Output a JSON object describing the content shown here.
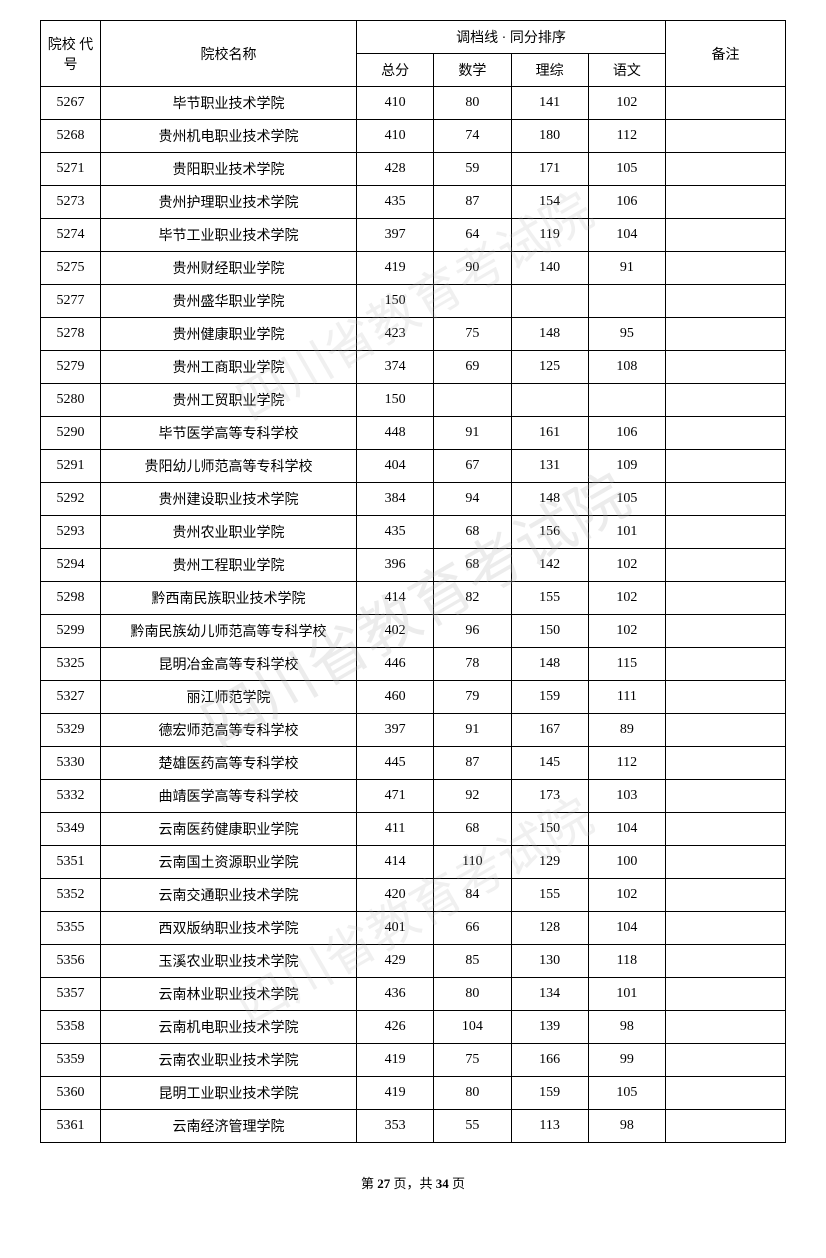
{
  "headers": {
    "code": "院校\n代号",
    "name": "院校名称",
    "score_group": "调档线 · 同分排序",
    "total": "总分",
    "math": "数学",
    "science": "理综",
    "chinese": "语文",
    "remark": "备注"
  },
  "rows": [
    {
      "code": "5267",
      "name": "毕节职业技术学院",
      "total": "410",
      "math": "80",
      "science": "141",
      "chinese": "102",
      "remark": ""
    },
    {
      "code": "5268",
      "name": "贵州机电职业技术学院",
      "total": "410",
      "math": "74",
      "science": "180",
      "chinese": "112",
      "remark": ""
    },
    {
      "code": "5271",
      "name": "贵阳职业技术学院",
      "total": "428",
      "math": "59",
      "science": "171",
      "chinese": "105",
      "remark": ""
    },
    {
      "code": "5273",
      "name": "贵州护理职业技术学院",
      "total": "435",
      "math": "87",
      "science": "154",
      "chinese": "106",
      "remark": ""
    },
    {
      "code": "5274",
      "name": "毕节工业职业技术学院",
      "total": "397",
      "math": "64",
      "science": "119",
      "chinese": "104",
      "remark": ""
    },
    {
      "code": "5275",
      "name": "贵州财经职业学院",
      "total": "419",
      "math": "90",
      "science": "140",
      "chinese": "91",
      "remark": ""
    },
    {
      "code": "5277",
      "name": "贵州盛华职业学院",
      "total": "150",
      "math": "",
      "science": "",
      "chinese": "",
      "remark": ""
    },
    {
      "code": "5278",
      "name": "贵州健康职业学院",
      "total": "423",
      "math": "75",
      "science": "148",
      "chinese": "95",
      "remark": ""
    },
    {
      "code": "5279",
      "name": "贵州工商职业学院",
      "total": "374",
      "math": "69",
      "science": "125",
      "chinese": "108",
      "remark": ""
    },
    {
      "code": "5280",
      "name": "贵州工贸职业学院",
      "total": "150",
      "math": "",
      "science": "",
      "chinese": "",
      "remark": ""
    },
    {
      "code": "5290",
      "name": "毕节医学高等专科学校",
      "total": "448",
      "math": "91",
      "science": "161",
      "chinese": "106",
      "remark": ""
    },
    {
      "code": "5291",
      "name": "贵阳幼儿师范高等专科学校",
      "total": "404",
      "math": "67",
      "science": "131",
      "chinese": "109",
      "remark": ""
    },
    {
      "code": "5292",
      "name": "贵州建设职业技术学院",
      "total": "384",
      "math": "94",
      "science": "148",
      "chinese": "105",
      "remark": ""
    },
    {
      "code": "5293",
      "name": "贵州农业职业学院",
      "total": "435",
      "math": "68",
      "science": "156",
      "chinese": "101",
      "remark": ""
    },
    {
      "code": "5294",
      "name": "贵州工程职业学院",
      "total": "396",
      "math": "68",
      "science": "142",
      "chinese": "102",
      "remark": ""
    },
    {
      "code": "5298",
      "name": "黔西南民族职业技术学院",
      "total": "414",
      "math": "82",
      "science": "155",
      "chinese": "102",
      "remark": ""
    },
    {
      "code": "5299",
      "name": "黔南民族幼儿师范高等专科学校",
      "total": "402",
      "math": "96",
      "science": "150",
      "chinese": "102",
      "remark": ""
    },
    {
      "code": "5325",
      "name": "昆明冶金高等专科学校",
      "total": "446",
      "math": "78",
      "science": "148",
      "chinese": "115",
      "remark": ""
    },
    {
      "code": "5327",
      "name": "丽江师范学院",
      "total": "460",
      "math": "79",
      "science": "159",
      "chinese": "111",
      "remark": ""
    },
    {
      "code": "5329",
      "name": "德宏师范高等专科学校",
      "total": "397",
      "math": "91",
      "science": "167",
      "chinese": "89",
      "remark": ""
    },
    {
      "code": "5330",
      "name": "楚雄医药高等专科学校",
      "total": "445",
      "math": "87",
      "science": "145",
      "chinese": "112",
      "remark": ""
    },
    {
      "code": "5332",
      "name": "曲靖医学高等专科学校",
      "total": "471",
      "math": "92",
      "science": "173",
      "chinese": "103",
      "remark": ""
    },
    {
      "code": "5349",
      "name": "云南医药健康职业学院",
      "total": "411",
      "math": "68",
      "science": "150",
      "chinese": "104",
      "remark": ""
    },
    {
      "code": "5351",
      "name": "云南国土资源职业学院",
      "total": "414",
      "math": "110",
      "science": "129",
      "chinese": "100",
      "remark": ""
    },
    {
      "code": "5352",
      "name": "云南交通职业技术学院",
      "total": "420",
      "math": "84",
      "science": "155",
      "chinese": "102",
      "remark": ""
    },
    {
      "code": "5355",
      "name": "西双版纳职业技术学院",
      "total": "401",
      "math": "66",
      "science": "128",
      "chinese": "104",
      "remark": ""
    },
    {
      "code": "5356",
      "name": "玉溪农业职业技术学院",
      "total": "429",
      "math": "85",
      "science": "130",
      "chinese": "118",
      "remark": ""
    },
    {
      "code": "5357",
      "name": "云南林业职业技术学院",
      "total": "436",
      "math": "80",
      "science": "134",
      "chinese": "101",
      "remark": ""
    },
    {
      "code": "5358",
      "name": "云南机电职业技术学院",
      "total": "426",
      "math": "104",
      "science": "139",
      "chinese": "98",
      "remark": ""
    },
    {
      "code": "5359",
      "name": "云南农业职业技术学院",
      "total": "419",
      "math": "75",
      "science": "166",
      "chinese": "99",
      "remark": ""
    },
    {
      "code": "5360",
      "name": "昆明工业职业技术学院",
      "total": "419",
      "math": "80",
      "science": "159",
      "chinese": "105",
      "remark": ""
    },
    {
      "code": "5361",
      "name": "云南经济管理学院",
      "total": "353",
      "math": "55",
      "science": "113",
      "chinese": "98",
      "remark": ""
    }
  ],
  "footer": {
    "prefix": "第 ",
    "current_page": "27",
    "mid": " 页，共 ",
    "total_pages": "34",
    "suffix": " 页"
  },
  "watermark": "四川省教育考试院"
}
